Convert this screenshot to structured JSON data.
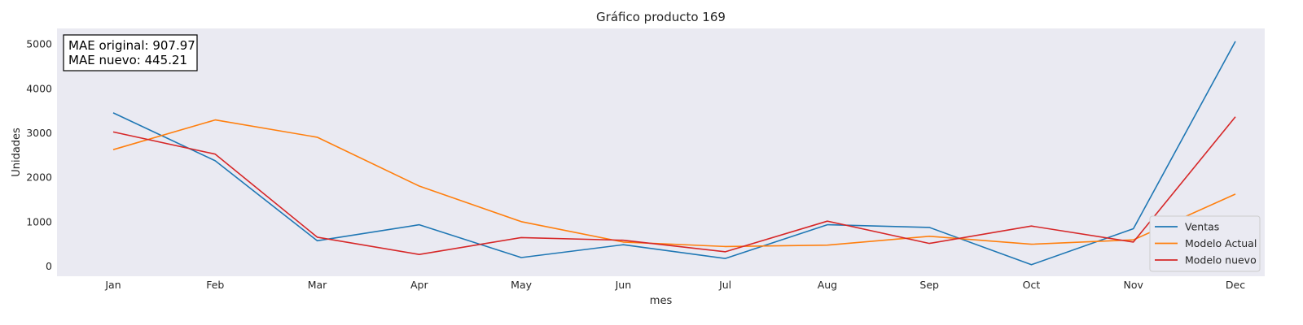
{
  "chart_data": {
    "type": "line",
    "title": "Gráfico producto 169",
    "xlabel": "mes",
    "ylabel": "Unidades",
    "categories": [
      "Jan",
      "Feb",
      "Mar",
      "Apr",
      "May",
      "Jun",
      "Jul",
      "Aug",
      "Sep",
      "Oct",
      "Nov",
      "Dec"
    ],
    "yticks": [
      0,
      1000,
      2000,
      3000,
      4000,
      5000
    ],
    "ylim": [
      -230,
      5350
    ],
    "grid": false,
    "legend_position": "lower-right",
    "background": "#eaeaf2",
    "series": [
      {
        "name": "Ventas",
        "color": "#1f77b4",
        "values": [
          3450,
          2370,
          570,
          930,
          190,
          480,
          170,
          930,
          870,
          30,
          840,
          5060
        ]
      },
      {
        "name": "Modelo Actual",
        "color": "#ff7f0e",
        "values": [
          2620,
          3290,
          2900,
          1800,
          1000,
          540,
          440,
          470,
          670,
          490,
          590,
          1620
        ]
      },
      {
        "name": "Modelo nuevo",
        "color": "#d62728",
        "values": [
          3020,
          2520,
          650,
          260,
          640,
          580,
          320,
          1010,
          510,
          900,
          540,
          3360
        ]
      }
    ],
    "annotations": {
      "mae_original": "MAE original: 907.97",
      "mae_nuevo": "MAE nuevo: 445.21"
    }
  }
}
